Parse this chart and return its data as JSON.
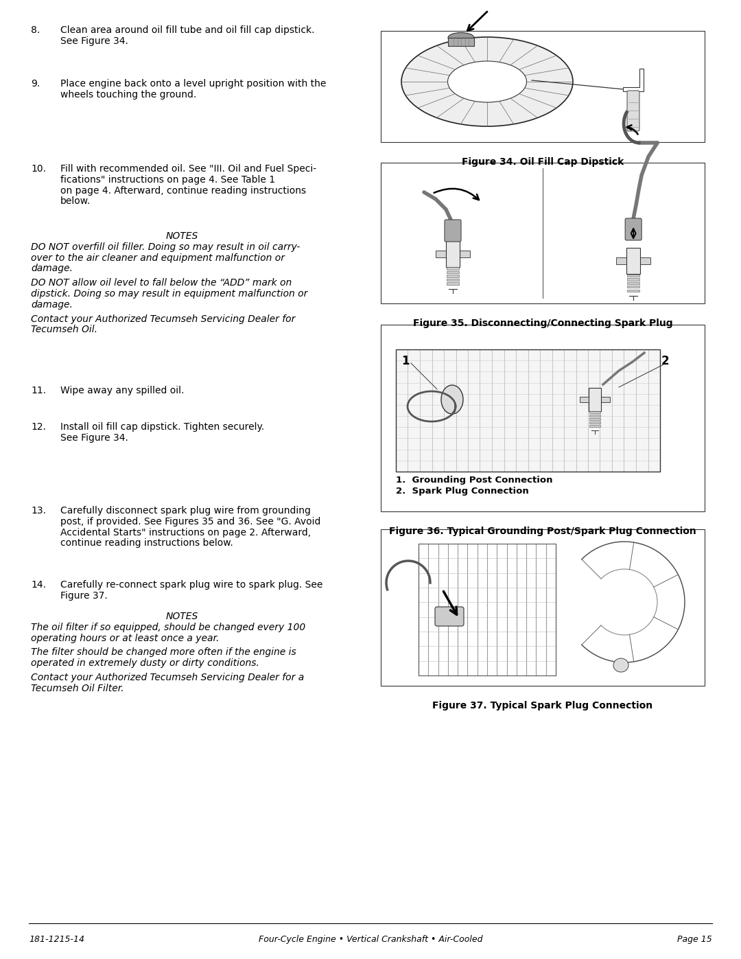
{
  "bg_color": "#ffffff",
  "text_color": "#000000",
  "page_width": 10.8,
  "page_height": 13.97,
  "footer_left": "181-1215-14",
  "footer_center": "Four-Cycle Engine • Vertical Crankshaft • Air-Cooled",
  "footer_right": "Page 15",
  "footer_fontsize": 9.0,
  "footer_style": "italic",
  "font_size_body": 10.0,
  "fig34_caption": "Figure 34. Oil Fill Cap Dipstick",
  "fig35_caption": "Figure 35. Disconnecting/Connecting Spark Plug",
  "fig36_caption": "Figure 36. Typical Grounding Post/Spark Plug Connection",
  "fig37_caption": "Figure 37. Typical Spark Plug Connection",
  "legend1": "1.  Grounding Post Connection",
  "legend2": "2.  Spark Plug Connection"
}
